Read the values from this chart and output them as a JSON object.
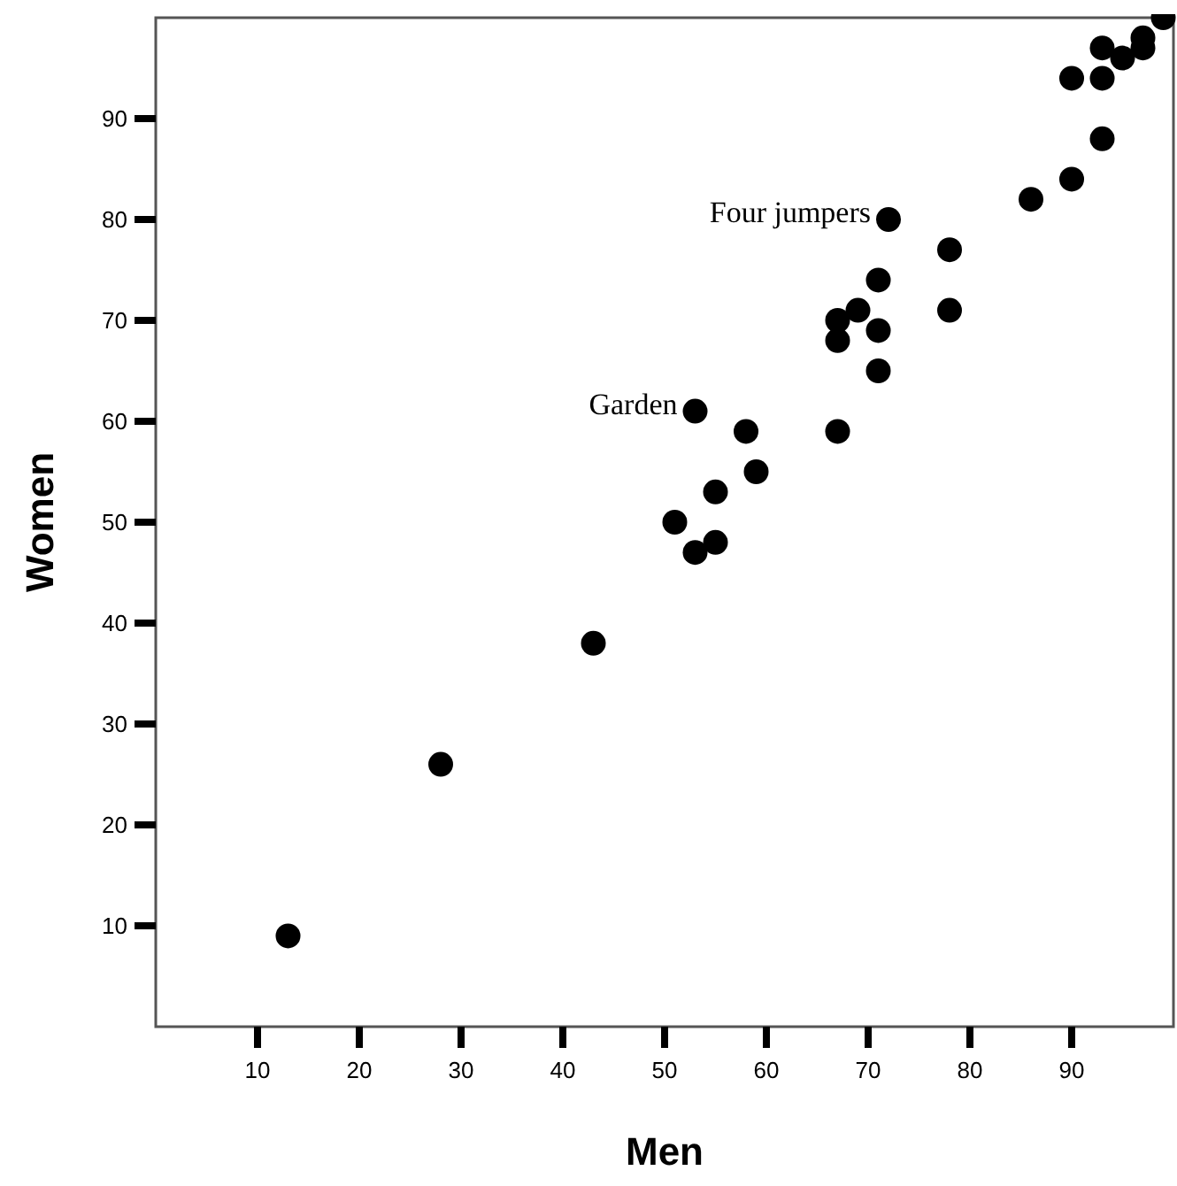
{
  "chart_data": {
    "type": "scatter",
    "xlabel": "Men",
    "ylabel": "Women",
    "x": [
      13,
      28,
      43,
      51,
      53,
      55,
      55,
      59,
      58,
      53,
      67,
      67,
      67,
      69,
      71,
      71,
      71,
      72,
      78,
      78,
      86,
      90,
      93,
      90,
      93,
      93,
      95,
      97,
      97,
      99
    ],
    "values": [
      9,
      26,
      38,
      50,
      47,
      48,
      53,
      55,
      59,
      61,
      59,
      68,
      70,
      71,
      69,
      65,
      74,
      80,
      77,
      71,
      82,
      84,
      88,
      94,
      94,
      97,
      96,
      97,
      98,
      100
    ],
    "color": "#000000",
    "marker": "circle",
    "xlim": [
      0,
      100
    ],
    "ylim": [
      0,
      100
    ],
    "xticks": [
      10,
      20,
      30,
      40,
      50,
      60,
      70,
      80,
      90
    ],
    "yticks": [
      10,
      20,
      30,
      40,
      50,
      60,
      70,
      80,
      90
    ],
    "grid": false,
    "annotations": [
      {
        "text": "Four jumpers",
        "x": 72,
        "y": 80
      },
      {
        "text": "Garden",
        "x": 53,
        "y": 61
      }
    ]
  }
}
